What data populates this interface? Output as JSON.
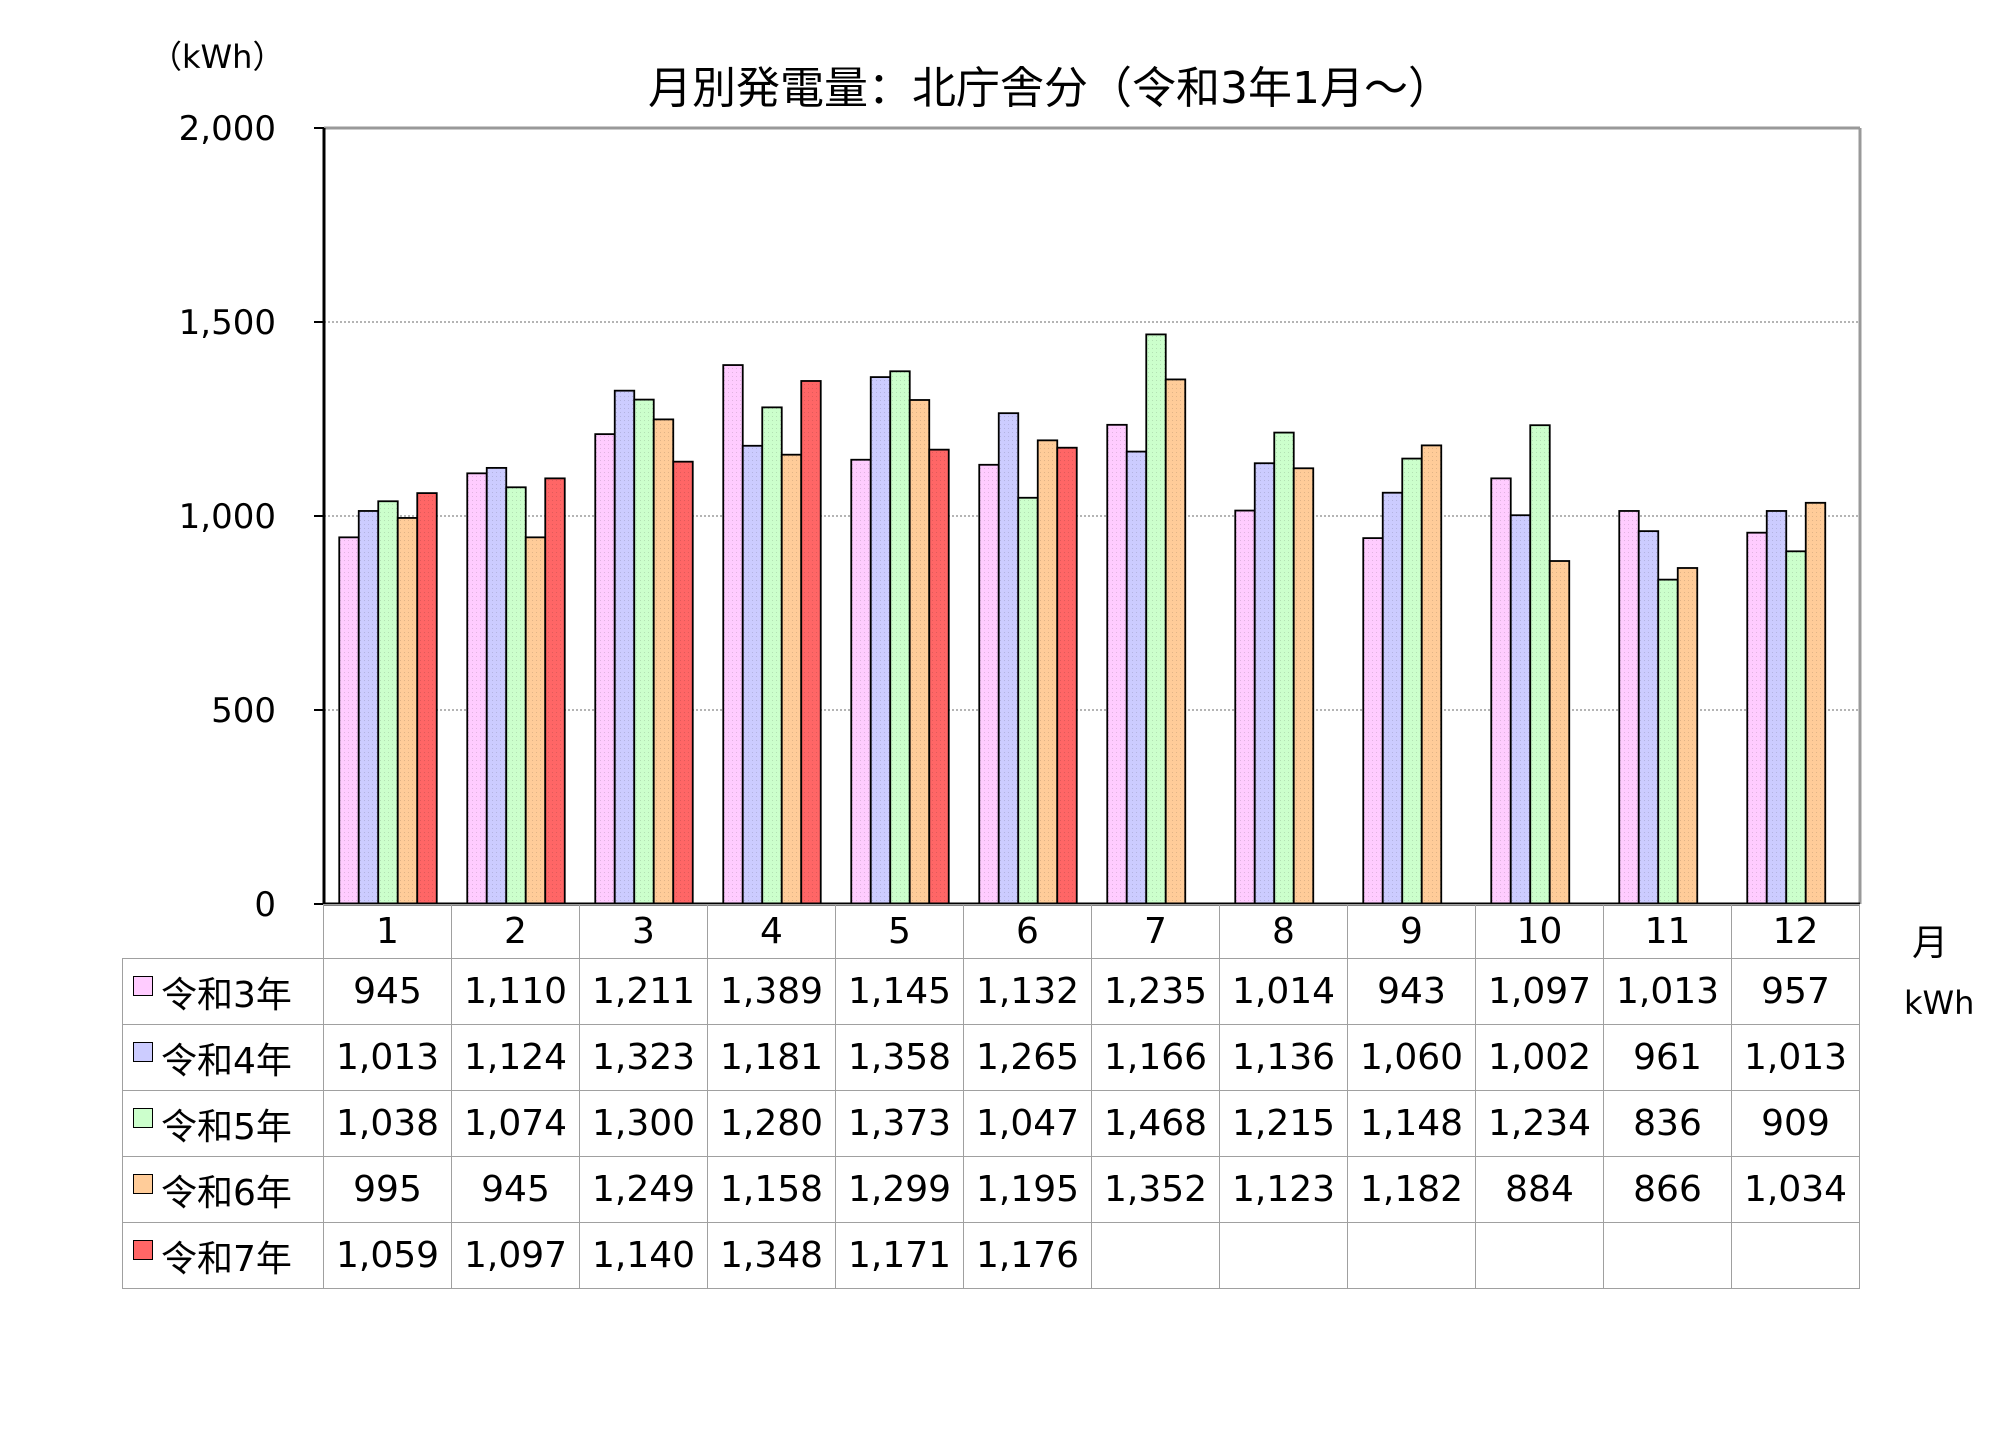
{
  "chart_data": {
    "type": "bar",
    "title": "月別発電量：北庁舎分（令和3年1月～）",
    "ylabel": "（kWh）",
    "xlabel": "月",
    "table_unit": "kWh",
    "ylim": [
      0,
      2000
    ],
    "yticks": [
      0,
      500,
      1000,
      1500,
      2000
    ],
    "ytick_labels": [
      "0",
      "500",
      "1,000",
      "1,500",
      "2,000"
    ],
    "grid": true,
    "categories": [
      "1",
      "2",
      "3",
      "4",
      "5",
      "6",
      "7",
      "8",
      "9",
      "10",
      "11",
      "12"
    ],
    "series": [
      {
        "name": "令和3年",
        "color": "#ffccff",
        "values": [
          945,
          1110,
          1211,
          1389,
          1145,
          1132,
          1235,
          1014,
          943,
          1097,
          1013,
          957
        ],
        "labels": [
          "945",
          "1,110",
          "1,211",
          "1,389",
          "1,145",
          "1,132",
          "1,235",
          "1,014",
          "943",
          "1,097",
          "1,013",
          "957"
        ]
      },
      {
        "name": "令和4年",
        "color": "#ccccff",
        "values": [
          1013,
          1124,
          1323,
          1181,
          1358,
          1265,
          1166,
          1136,
          1060,
          1002,
          961,
          1013
        ],
        "labels": [
          "1,013",
          "1,124",
          "1,323",
          "1,181",
          "1,358",
          "1,265",
          "1,166",
          "1,136",
          "1,060",
          "1,002",
          "961",
          "1,013"
        ]
      },
      {
        "name": "令和5年",
        "color": "#ccffcc",
        "values": [
          1038,
          1074,
          1300,
          1280,
          1373,
          1047,
          1468,
          1215,
          1148,
          1234,
          836,
          909
        ],
        "labels": [
          "1,038",
          "1,074",
          "1,300",
          "1,280",
          "1,373",
          "1,047",
          "1,468",
          "1,215",
          "1,148",
          "1,234",
          "836",
          "909"
        ]
      },
      {
        "name": "令和6年",
        "color": "#ffcc99",
        "values": [
          995,
          945,
          1249,
          1158,
          1299,
          1195,
          1352,
          1123,
          1182,
          884,
          866,
          1034
        ],
        "labels": [
          "995",
          "945",
          "1,249",
          "1,158",
          "1,299",
          "1,195",
          "1,352",
          "1,123",
          "1,182",
          "884",
          "866",
          "1,034"
        ]
      },
      {
        "name": "令和7年",
        "color": "#ff6666",
        "values": [
          1059,
          1097,
          1140,
          1348,
          1171,
          1176,
          null,
          null,
          null,
          null,
          null,
          null
        ],
        "labels": [
          "1,059",
          "1,097",
          "1,140",
          "1,348",
          "1,171",
          "1,176",
          "",
          "",
          "",
          "",
          "",
          ""
        ]
      }
    ]
  }
}
